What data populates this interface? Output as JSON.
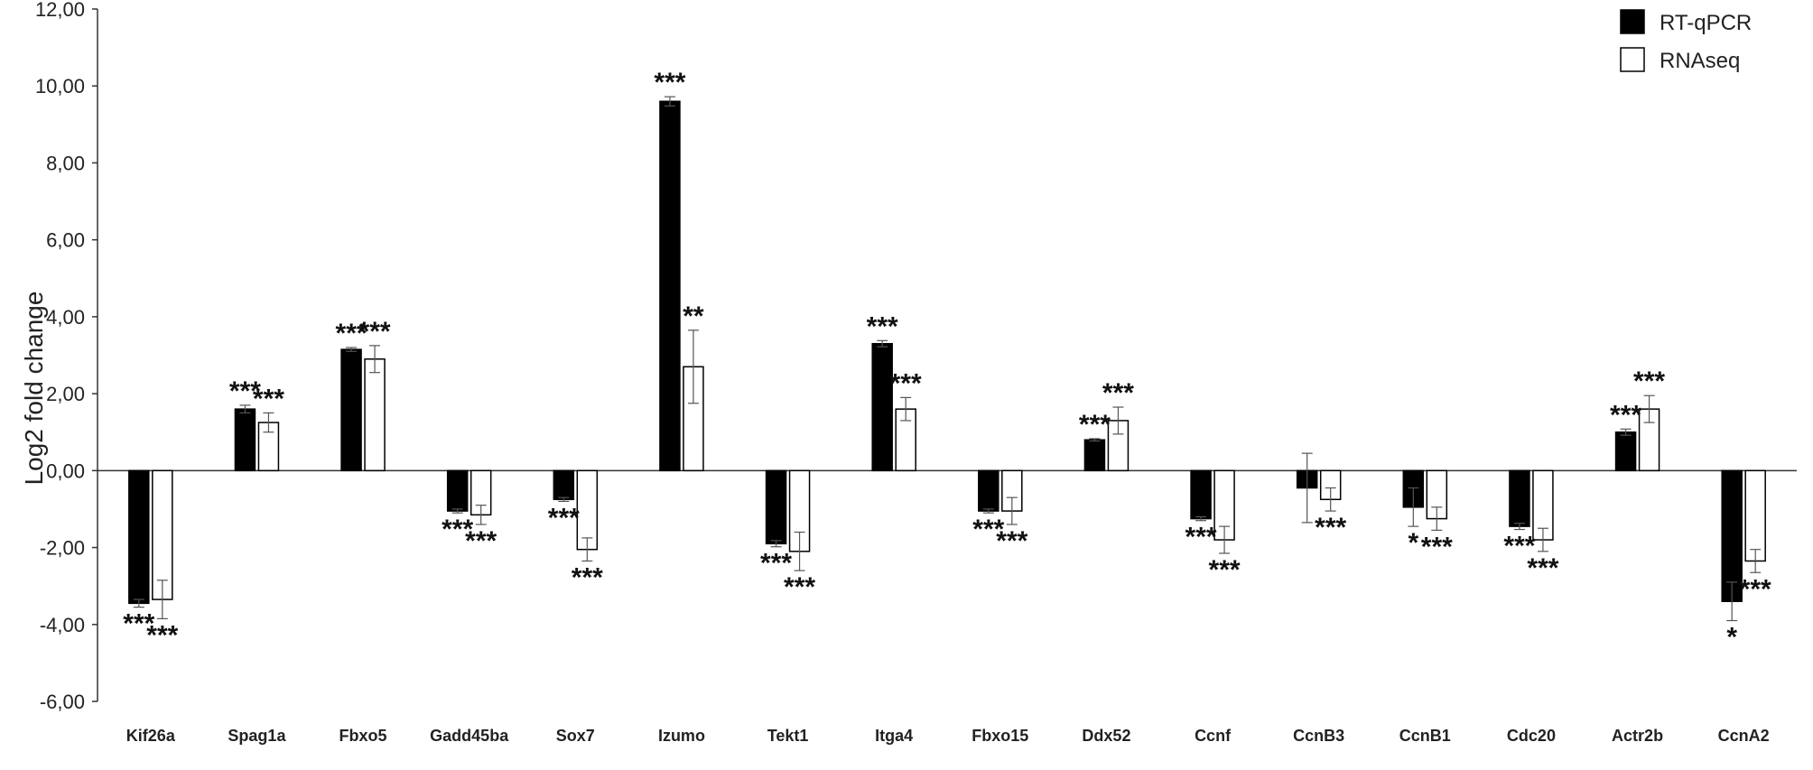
{
  "chart_data": {
    "type": "bar",
    "title": "",
    "xlabel": "",
    "ylabel": "Log2 fold change",
    "ylim": [
      -6,
      12
    ],
    "yticks": [
      -6,
      -4,
      -2,
      0,
      2,
      4,
      6,
      8,
      10,
      12
    ],
    "ytick_labels": [
      "-6,00",
      "-4,00",
      "-2,00",
      "0,00",
      "2,00",
      "4,00",
      "6,00",
      "8,00",
      "10,00",
      "12,00"
    ],
    "grid": false,
    "legend_position": "top-right",
    "categories": [
      "Kif26a",
      "Spag1a",
      "Fbxo5",
      "Gadd45ba",
      "Sox7",
      "Izumo",
      "Tekt1",
      "Itga4",
      "Fbxo15",
      "Ddx52",
      "Ccnf",
      "CcnB3",
      "CcnB1",
      "Cdc20",
      "Actr2b",
      "CcnA2"
    ],
    "series": [
      {
        "name": "RT-qPCR",
        "color": "#000000",
        "values": [
          -3.45,
          1.6,
          3.15,
          -1.05,
          -0.75,
          9.6,
          -1.9,
          3.3,
          -1.05,
          0.8,
          -1.25,
          -0.45,
          -0.95,
          -1.45,
          1.0,
          -3.4
        ],
        "errors": [
          0.1,
          0.1,
          0.05,
          0.05,
          0.05,
          0.12,
          0.08,
          0.08,
          0.05,
          0.03,
          0.05,
          0.9,
          0.5,
          0.08,
          0.08,
          0.5
        ],
        "significance": [
          "***",
          "***",
          "***",
          "***",
          "***",
          "***",
          "***",
          "***",
          "***",
          "***",
          "***",
          "",
          "*",
          "***",
          "***",
          "*"
        ]
      },
      {
        "name": "RNAseq",
        "color": "#ffffff",
        "values": [
          -3.35,
          1.25,
          2.9,
          -1.15,
          -2.05,
          2.7,
          -2.1,
          1.6,
          -1.05,
          1.3,
          -1.8,
          -0.75,
          -1.25,
          -1.8,
          1.6,
          -2.35
        ],
        "errors": [
          0.5,
          0.25,
          0.35,
          0.25,
          0.3,
          0.95,
          0.5,
          0.3,
          0.35,
          0.35,
          0.35,
          0.3,
          0.3,
          0.3,
          0.35,
          0.3
        ],
        "significance": [
          "***",
          "***",
          "***",
          "***",
          "***",
          "**",
          "***",
          "***",
          "***",
          "***",
          "***",
          "***",
          "***",
          "***",
          "***",
          "***"
        ]
      }
    ]
  }
}
